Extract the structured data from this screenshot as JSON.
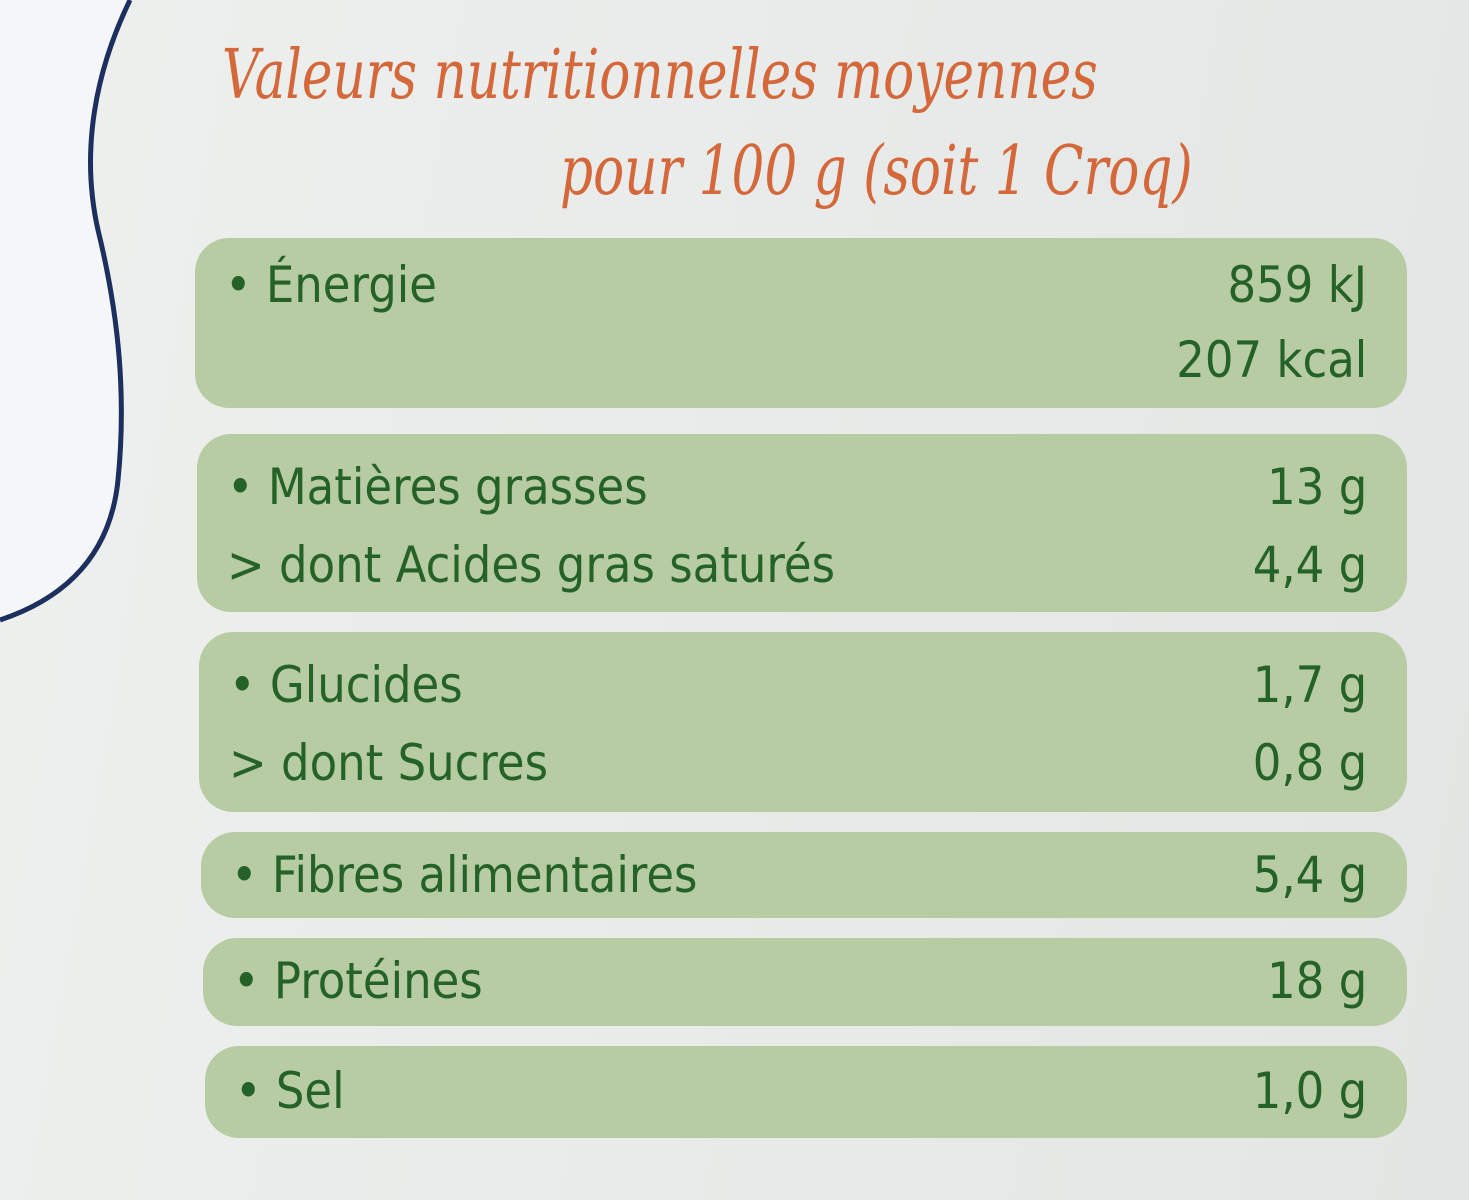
{
  "heading": {
    "line1": "Valeurs nutritionnelles moyennes",
    "line2": "pour 100 g (soit 1 Croq)"
  },
  "rows": {
    "energy": {
      "label": "• Énergie",
      "kj": "859 kJ",
      "kcal": "207 kcal"
    },
    "fat": {
      "label": "• Matières grasses",
      "value": "13 g"
    },
    "saturated": {
      "label": "> dont Acides gras saturés",
      "value": "4,4 g"
    },
    "carbs": {
      "label": "• Glucides",
      "value": "1,7 g"
    },
    "sugars": {
      "label": "> dont Sucres",
      "value": "0,8 g"
    },
    "fibre": {
      "label": "• Fibres alimentaires",
      "value": "5,4 g"
    },
    "protein": {
      "label": "• Protéines",
      "value": "18 g"
    },
    "salt": {
      "label": "• Sel",
      "value": "1,0 g"
    }
  },
  "colors": {
    "heading": "#d4683a",
    "panel": "#b8cca3",
    "text": "#256228"
  }
}
